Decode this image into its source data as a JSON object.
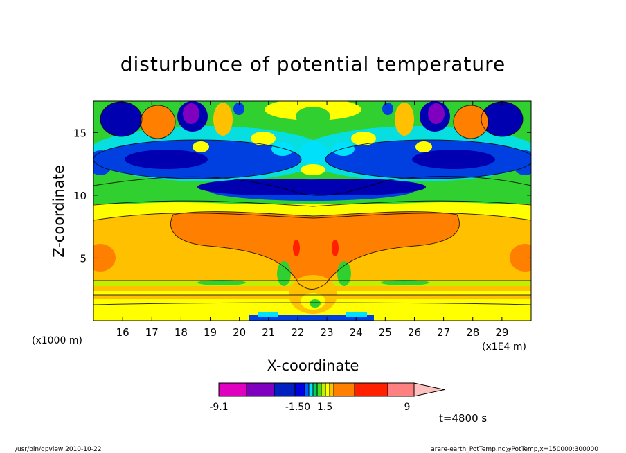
{
  "chart_data": {
    "type": "heatmap",
    "title": "disturbunce of potential temperature",
    "xlabel": "X-coordinate",
    "ylabel": "Z-coordinate",
    "x_unit_note": "(x1E4 m)",
    "z_unit_note": "(x1000 m)",
    "xlim": [
      15,
      30
    ],
    "ylim": [
      0,
      17.5
    ],
    "x_ticks": [
      16,
      17,
      18,
      19,
      20,
      21,
      22,
      23,
      24,
      25,
      26,
      27,
      28,
      29
    ],
    "y_ticks": [
      5,
      10,
      15
    ],
    "grid": false,
    "colorbar": {
      "tick_labels": [
        "-9.1",
        "-1.50",
        "1.5",
        "9"
      ],
      "colors": [
        "#e000c0",
        "#8000c0",
        "#0020c0",
        "#0000e0",
        "#0060ff",
        "#00e0ff",
        "#00d060",
        "#40e020",
        "#c0f000",
        "#ffff00",
        "#ffc000",
        "#ff8000",
        "#ff2000",
        "#ff8080",
        "#ffc0c0"
      ]
    },
    "time_label": "t=4800 s"
  },
  "footer": {
    "left": "/usr/bin/gpview   2010-10-22",
    "right": "arare-earth_PotTemp.nc@PotTemp,x=150000:300000"
  }
}
